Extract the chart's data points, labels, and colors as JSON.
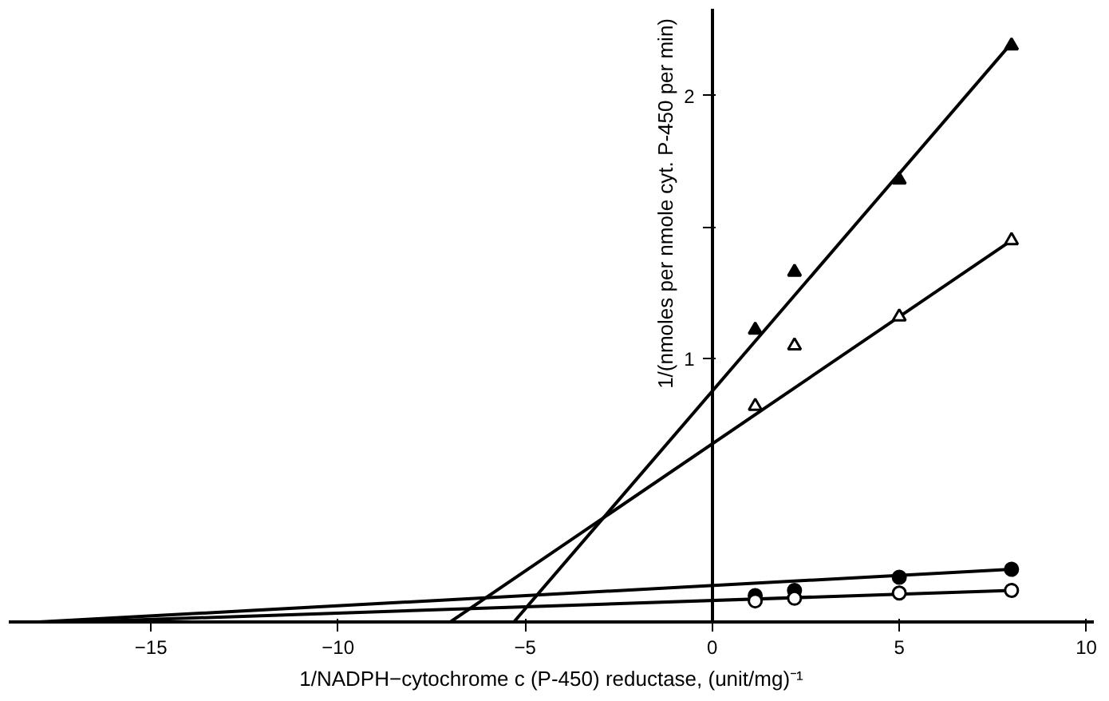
{
  "chart_data": {
    "type": "scatter",
    "xlabel": "1/NADPH−cytochrome c (P-450) reductase, (unit/mg)⁻¹",
    "ylabel": "1/(nmoles per nmole cyt. P-450 per min)",
    "xlim": [
      -18.8,
      10.2
    ],
    "ylim": [
      0,
      2.33
    ],
    "xticks": [
      -15,
      -10,
      -5,
      0,
      5,
      10
    ],
    "yticks": [
      1,
      {
        "value": 1.5,
        "label": null
      },
      2
    ],
    "grid": false,
    "series": [
      {
        "marker": "triangle",
        "color": "#000000",
        "x": [
          1.15,
          2.2,
          5,
          8
        ],
        "values": [
          1.11,
          1.33,
          1.68,
          2.19
        ]
      },
      {
        "marker": "triangle",
        "color": "#ffffff",
        "x": [
          1.15,
          2.2,
          5,
          8
        ],
        "values": [
          0.82,
          1.05,
          1.16,
          1.45
        ]
      },
      {
        "marker": "circle",
        "color": "#000000",
        "x": [
          1.15,
          2.2,
          5,
          8
        ],
        "values": [
          0.1,
          0.12,
          0.17,
          0.2
        ]
      },
      {
        "marker": "circle",
        "color": "#ffffff",
        "x": [
          1.15,
          2.2,
          5,
          8
        ],
        "values": [
          0.08,
          0.09,
          0.11,
          0.12
        ]
      },
      {
        "type": "line",
        "marker": "none",
        "line_style": "solid",
        "color": "#000000",
        "x": [
          -5.3,
          8
        ],
        "values": [
          0,
          2.2
        ]
      },
      {
        "type": "line",
        "marker": "none",
        "line_style": "solid",
        "color": "#000000",
        "x": [
          -7,
          8
        ],
        "values": [
          0,
          1.45
        ]
      },
      {
        "type": "line",
        "marker": "none",
        "line_style": "solid",
        "color": "#000000",
        "x": [
          -18,
          8
        ],
        "values": [
          0,
          0.2
        ]
      },
      {
        "type": "line",
        "marker": "none",
        "line_style": "solid",
        "color": "#000000",
        "x": [
          -17,
          8
        ],
        "values": [
          0,
          0.12
        ]
      }
    ]
  }
}
